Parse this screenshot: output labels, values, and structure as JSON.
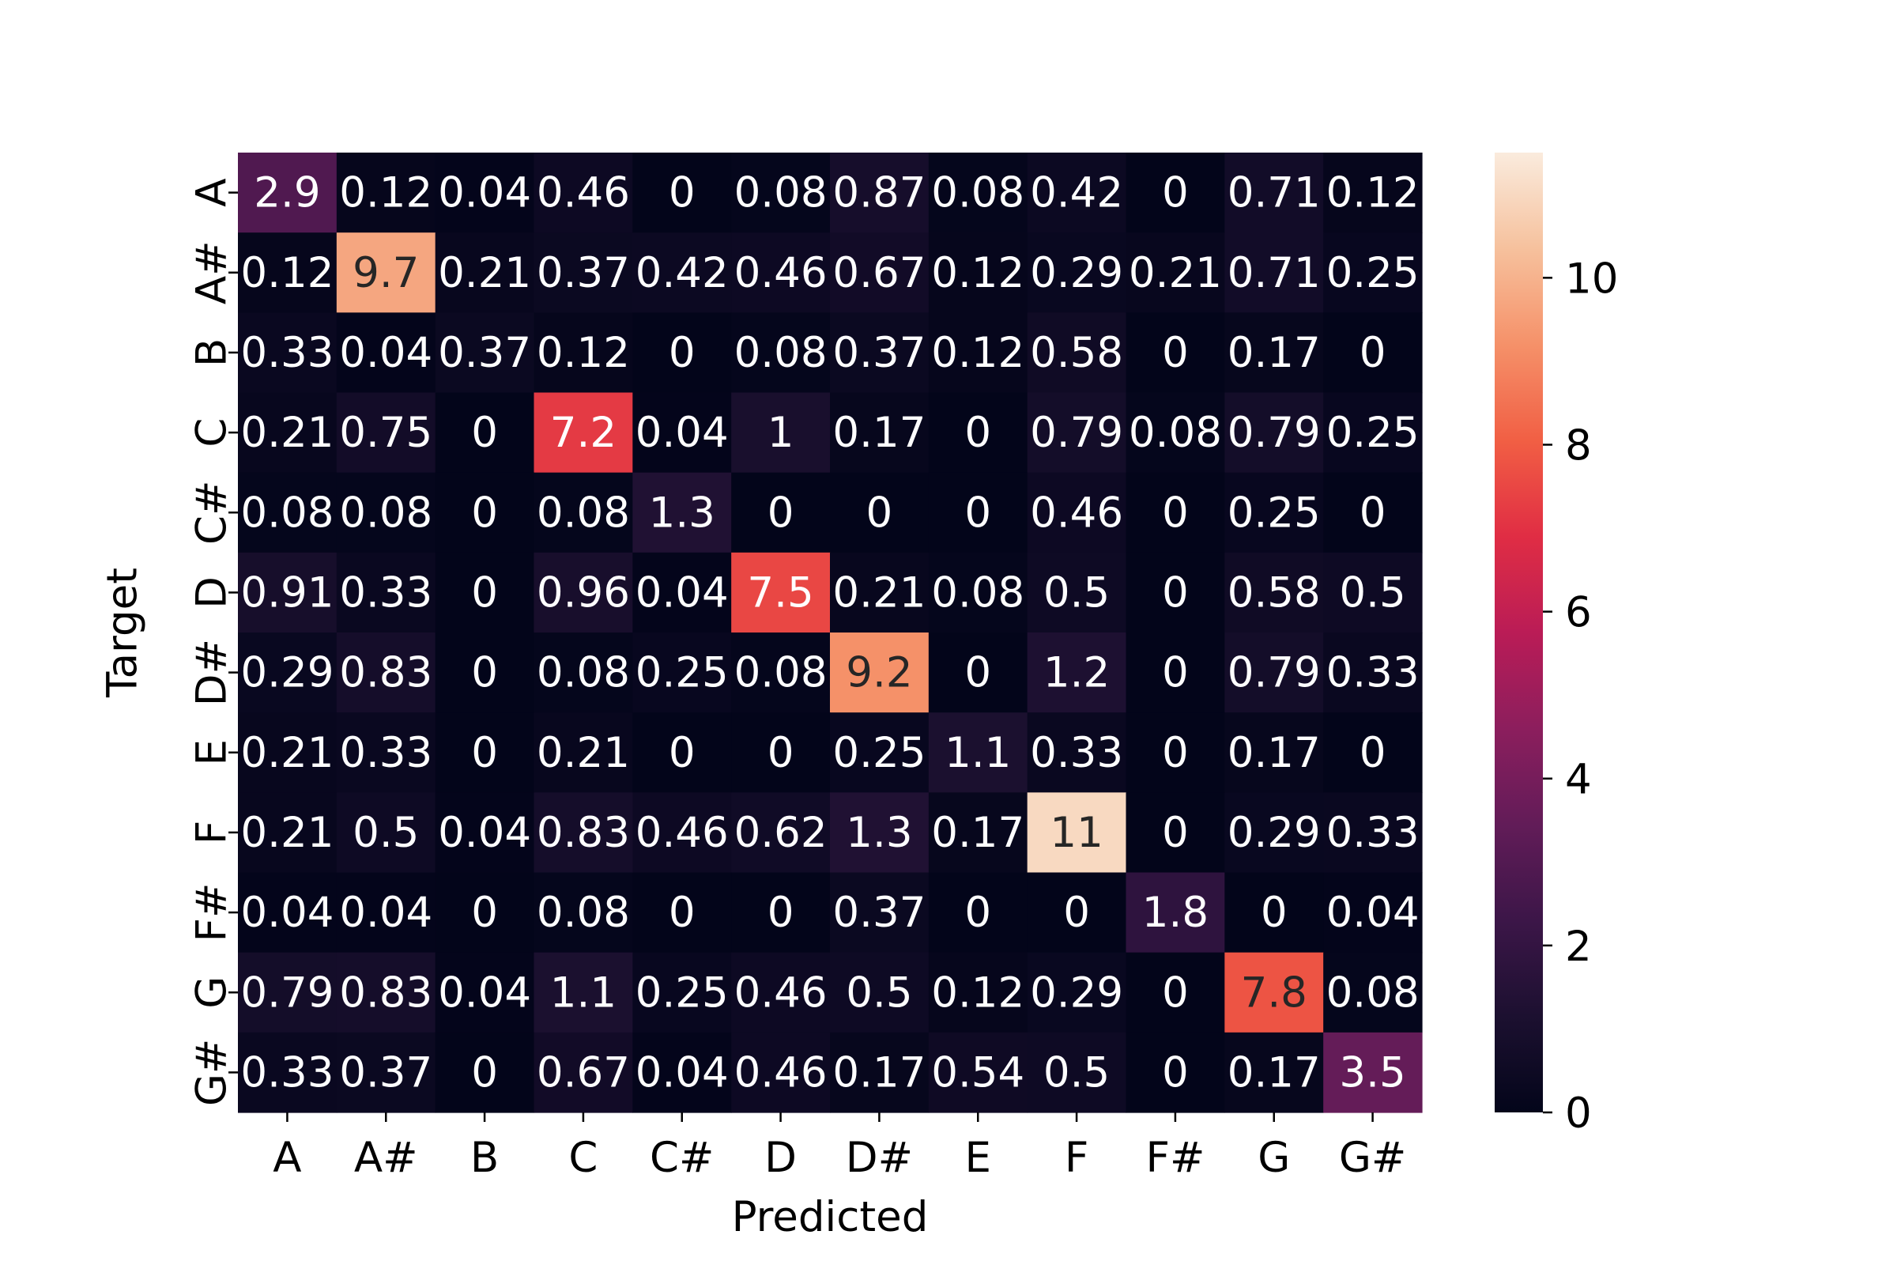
{
  "chart_data": {
    "type": "heatmap",
    "title": "",
    "xlabel": "Predicted",
    "ylabel": "Target",
    "x_categories": [
      "A",
      "A#",
      "B",
      "C",
      "C#",
      "D",
      "D#",
      "E",
      "F",
      "F#",
      "G",
      "G#"
    ],
    "y_categories": [
      "A",
      "A#",
      "B",
      "C",
      "C#",
      "D",
      "D#",
      "E",
      "F",
      "F#",
      "G",
      "G#"
    ],
    "values": [
      [
        2.9,
        0.12,
        0.04,
        0.46,
        0,
        0.08,
        0.87,
        0.08,
        0.42,
        0,
        0.71,
        0.12
      ],
      [
        0.12,
        9.7,
        0.21,
        0.37,
        0.42,
        0.46,
        0.67,
        0.12,
        0.29,
        0.21,
        0.71,
        0.25
      ],
      [
        0.33,
        0.04,
        0.37,
        0.12,
        0,
        0.08,
        0.37,
        0.12,
        0.58,
        0,
        0.17,
        0
      ],
      [
        0.21,
        0.75,
        0,
        7.2,
        0.04,
        1,
        0.17,
        0,
        0.79,
        0.08,
        0.79,
        0.25
      ],
      [
        0.08,
        0.08,
        0,
        0.08,
        1.3,
        0,
        0,
        0,
        0.46,
        0,
        0.25,
        0
      ],
      [
        0.91,
        0.33,
        0,
        0.96,
        0.04,
        7.5,
        0.21,
        0.08,
        0.5,
        0,
        0.58,
        0.5
      ],
      [
        0.29,
        0.83,
        0,
        0.08,
        0.25,
        0.08,
        9.2,
        0,
        1.2,
        0,
        0.79,
        0.33
      ],
      [
        0.21,
        0.33,
        0,
        0.21,
        0,
        0,
        0.25,
        1.1,
        0.33,
        0,
        0.17,
        0
      ],
      [
        0.21,
        0.5,
        0.04,
        0.83,
        0.46,
        0.62,
        1.3,
        0.17,
        11,
        0,
        0.29,
        0.33
      ],
      [
        0.04,
        0.04,
        0,
        0.08,
        0,
        0,
        0.37,
        0,
        0,
        1.8,
        0,
        0.04
      ],
      [
        0.79,
        0.83,
        0.04,
        1.1,
        0.25,
        0.46,
        0.5,
        0.12,
        0.29,
        0,
        7.8,
        0.08
      ],
      [
        0.33,
        0.37,
        0,
        0.67,
        0.04,
        0.46,
        0.17,
        0.54,
        0.5,
        0,
        0.17,
        3.5
      ]
    ],
    "value_range": [
      0,
      11.5
    ],
    "colormap": "rocket",
    "colorbar": {
      "ticks": [
        0,
        2,
        4,
        6,
        8,
        10
      ],
      "placement": "right"
    },
    "annotate": true
  }
}
